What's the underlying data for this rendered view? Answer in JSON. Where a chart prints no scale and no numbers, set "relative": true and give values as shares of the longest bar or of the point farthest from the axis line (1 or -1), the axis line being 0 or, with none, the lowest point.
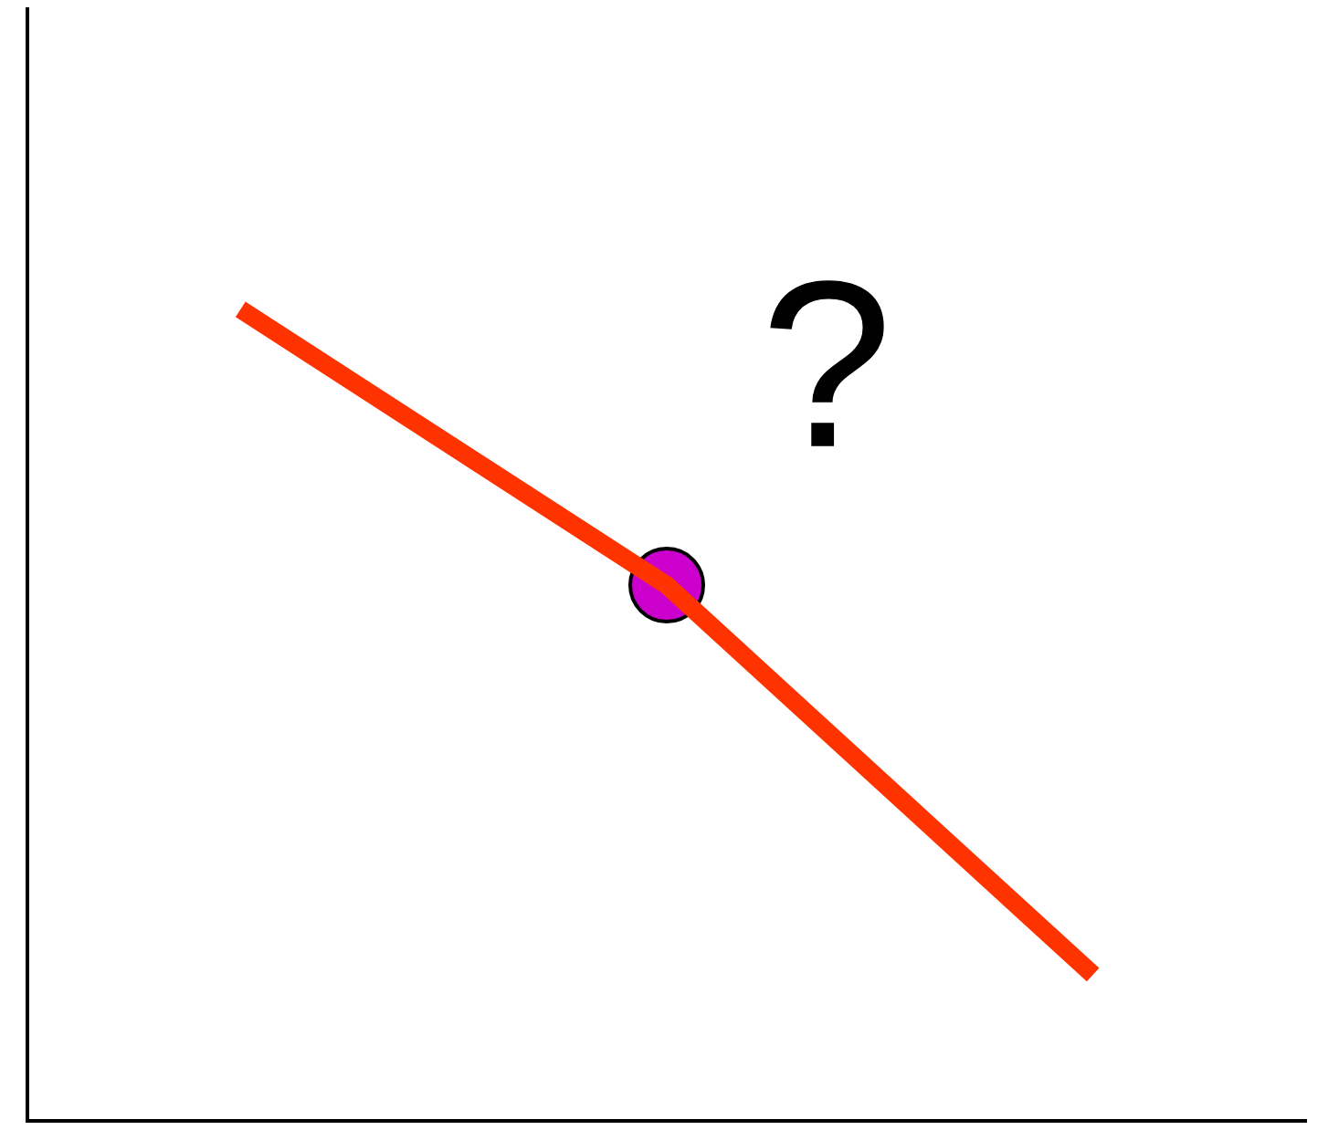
{
  "chart_data": {
    "type": "line",
    "relative": true,
    "categories": [
      null,
      null,
      null
    ],
    "series": [
      {
        "color": "#ff3300",
        "values": [
          1,
          0.66,
          0.18
        ],
        "marker": "none"
      },
      {
        "color": "#cc00cc",
        "values": [
          null,
          0.66,
          null
        ],
        "marker": "circle"
      }
    ],
    "annotations": [
      "?"
    ]
  }
}
